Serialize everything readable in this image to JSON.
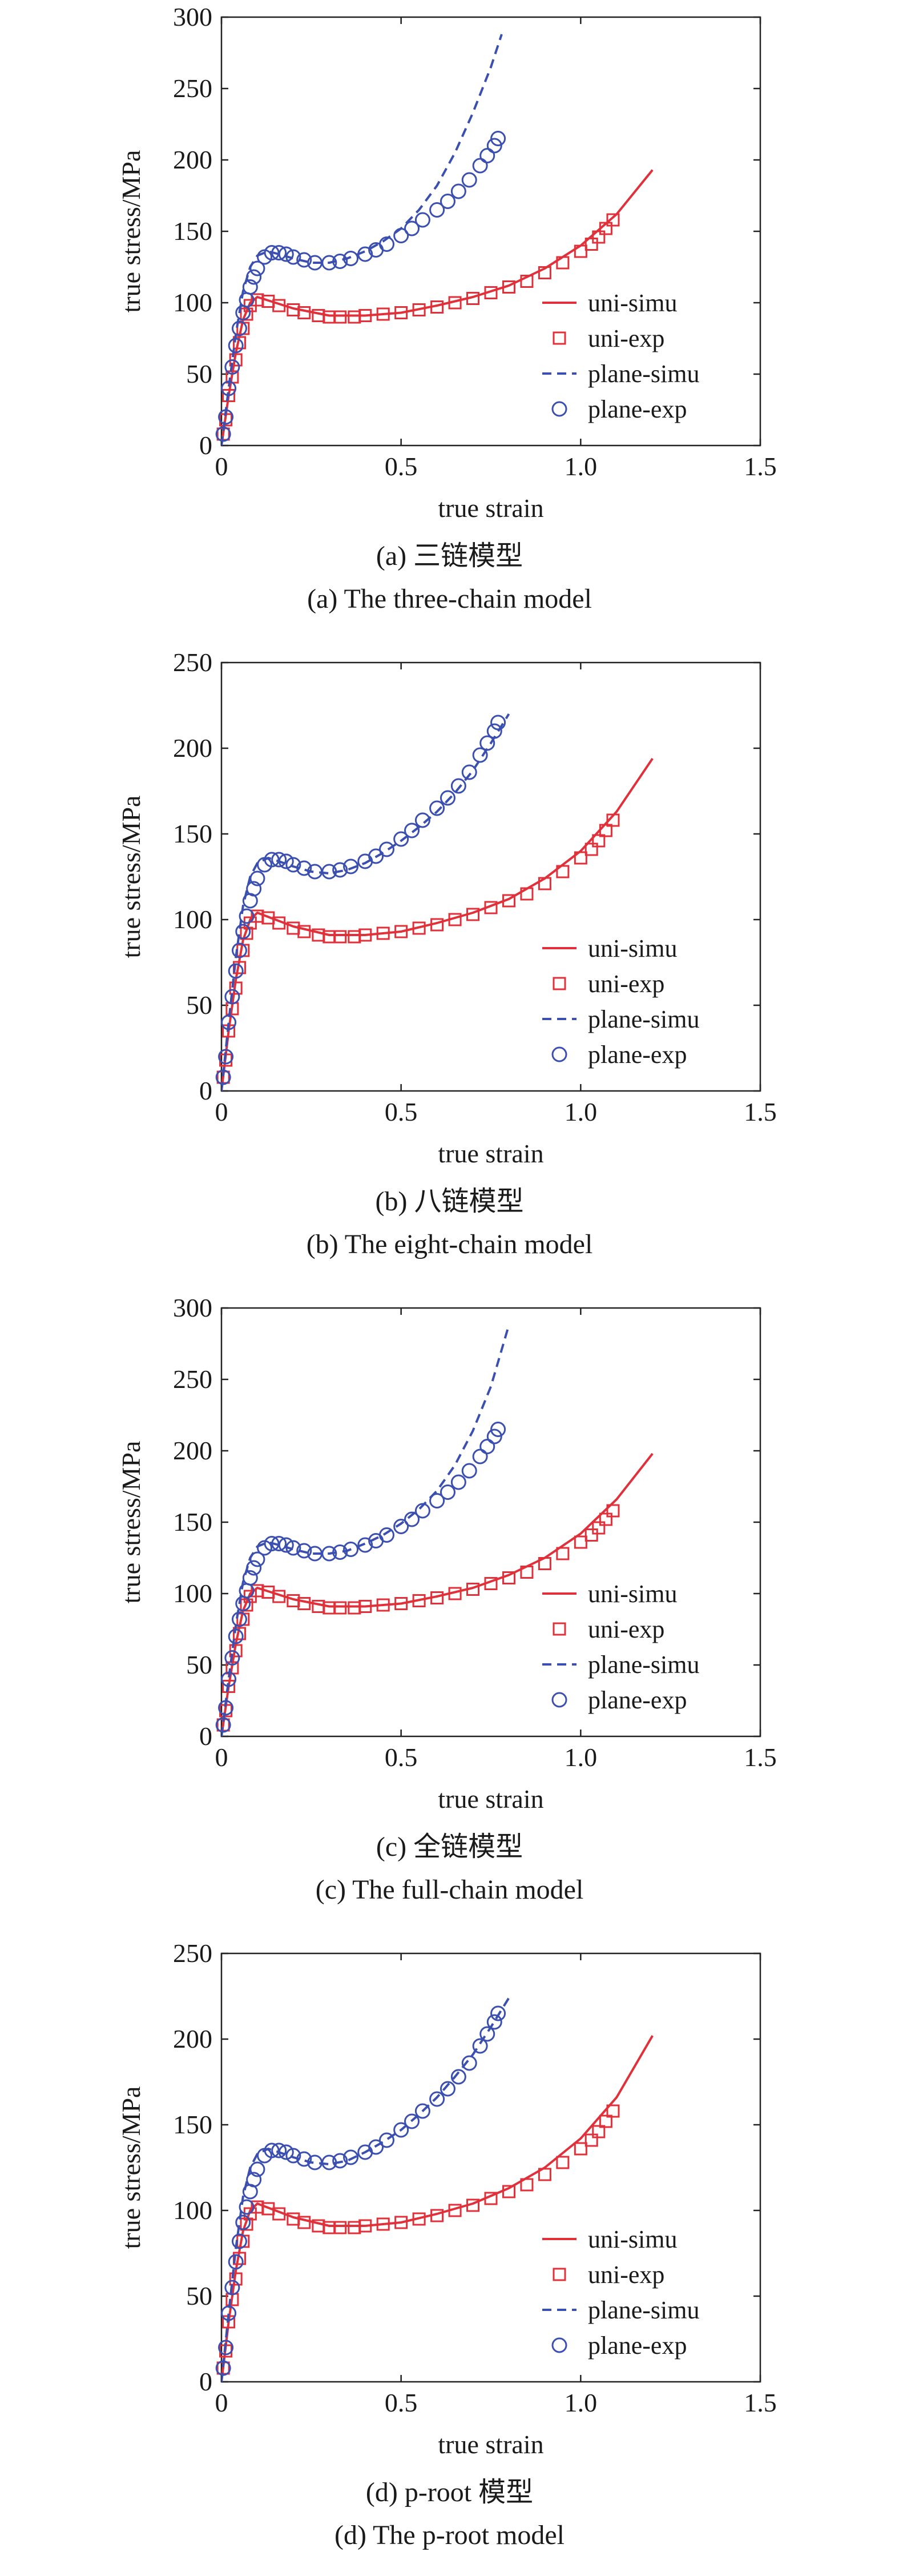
{
  "chart_data": [
    {
      "type": "line",
      "caption_cn": "(a) 三链模型",
      "caption_en": "(a) The three-chain model",
      "xlabel": "true strain",
      "ylabel": "true stress/MPa",
      "xlim": [
        0,
        1.5
      ],
      "ylim": [
        0,
        300
      ],
      "xticks": [
        "0",
        "0.5",
        "1.0",
        "1.5"
      ],
      "yticks": [
        "0",
        "50",
        "100",
        "150",
        "200",
        "250",
        "300"
      ],
      "legend_position": "lower-right",
      "series": [
        {
          "name": "uni-simu",
          "style": "solid",
          "color": "#e0303a",
          "x": [
            0,
            0.02,
            0.04,
            0.06,
            0.08,
            0.1,
            0.15,
            0.2,
            0.3,
            0.4,
            0.5,
            0.6,
            0.7,
            0.8,
            0.9,
            1.0,
            1.1,
            1.2
          ],
          "y": [
            0,
            35,
            65,
            88,
            100,
            104,
            100,
            96,
            91,
            91,
            93,
            98,
            104,
            112,
            124,
            140,
            162,
            193
          ]
        },
        {
          "name": "uni-exp",
          "marker": "square",
          "color": "#e0303a",
          "x": [
            0.005,
            0.012,
            0.02,
            0.03,
            0.04,
            0.05,
            0.06,
            0.07,
            0.08,
            0.1,
            0.13,
            0.16,
            0.2,
            0.23,
            0.27,
            0.3,
            0.33,
            0.37,
            0.4,
            0.45,
            0.5,
            0.55,
            0.6,
            0.65,
            0.7,
            0.75,
            0.8,
            0.85,
            0.9,
            0.95,
            1.0,
            1.03,
            1.05,
            1.07,
            1.09
          ],
          "y": [
            8,
            18,
            35,
            48,
            60,
            72,
            82,
            92,
            98,
            102,
            101,
            98,
            95,
            93,
            91,
            90,
            90,
            90,
            91,
            92,
            93,
            95,
            97,
            100,
            103,
            107,
            111,
            115,
            121,
            128,
            136,
            141,
            146,
            152,
            158
          ]
        },
        {
          "name": "plane-simu",
          "style": "dashed",
          "color": "#3a4fb0",
          "x": [
            0,
            0.02,
            0.04,
            0.06,
            0.08,
            0.1,
            0.13,
            0.16,
            0.2,
            0.25,
            0.3,
            0.35,
            0.4,
            0.45,
            0.5,
            0.55,
            0.6,
            0.65,
            0.7,
            0.75,
            0.78
          ],
          "y": [
            0,
            40,
            78,
            108,
            125,
            133,
            136,
            134,
            131,
            128,
            128,
            131,
            136,
            143,
            152,
            165,
            182,
            205,
            233,
            265,
            288
          ]
        },
        {
          "name": "plane-exp",
          "marker": "circle",
          "color": "#3a4fb0",
          "x": [
            0.005,
            0.012,
            0.02,
            0.03,
            0.04,
            0.05,
            0.06,
            0.07,
            0.08,
            0.09,
            0.1,
            0.12,
            0.14,
            0.16,
            0.18,
            0.2,
            0.23,
            0.26,
            0.3,
            0.33,
            0.36,
            0.4,
            0.43,
            0.46,
            0.5,
            0.53,
            0.56,
            0.6,
            0.63,
            0.66,
            0.69,
            0.72,
            0.74,
            0.76,
            0.77
          ],
          "y": [
            8,
            20,
            40,
            55,
            70,
            82,
            93,
            102,
            111,
            118,
            124,
            132,
            135,
            135,
            134,
            132,
            130,
            128,
            128,
            129,
            131,
            134,
            137,
            141,
            147,
            152,
            158,
            165,
            171,
            178,
            186,
            196,
            203,
            210,
            215
          ]
        }
      ]
    },
    {
      "type": "line",
      "caption_cn": "(b) 八链模型",
      "caption_en": "(b) The eight-chain model",
      "xlabel": "true strain",
      "ylabel": "true stress/MPa",
      "xlim": [
        0,
        1.5
      ],
      "ylim": [
        0,
        250
      ],
      "xticks": [
        "0",
        "0.5",
        "1.0",
        "1.5"
      ],
      "yticks": [
        "0",
        "50",
        "100",
        "150",
        "200",
        "250"
      ],
      "legend_position": "lower-right",
      "series": [
        {
          "name": "uni-simu",
          "style": "solid",
          "color": "#e0303a",
          "x": [
            0,
            0.02,
            0.04,
            0.06,
            0.08,
            0.1,
            0.15,
            0.2,
            0.3,
            0.4,
            0.5,
            0.6,
            0.7,
            0.8,
            0.9,
            1.0,
            1.1,
            1.2
          ],
          "y": [
            0,
            35,
            65,
            88,
            100,
            104,
            100,
            96,
            91,
            91,
            93,
            98,
            104,
            112,
            124,
            140,
            163,
            194
          ]
        },
        {
          "name": "uni-exp",
          "marker": "square",
          "color": "#e0303a",
          "x": [
            0.005,
            0.012,
            0.02,
            0.03,
            0.04,
            0.05,
            0.06,
            0.07,
            0.08,
            0.1,
            0.13,
            0.16,
            0.2,
            0.23,
            0.27,
            0.3,
            0.33,
            0.37,
            0.4,
            0.45,
            0.5,
            0.55,
            0.6,
            0.65,
            0.7,
            0.75,
            0.8,
            0.85,
            0.9,
            0.95,
            1.0,
            1.03,
            1.05,
            1.07,
            1.09
          ],
          "y": [
            8,
            18,
            35,
            48,
            60,
            72,
            82,
            92,
            98,
            102,
            101,
            98,
            95,
            93,
            91,
            90,
            90,
            90,
            91,
            92,
            93,
            95,
            97,
            100,
            103,
            107,
            111,
            115,
            121,
            128,
            136,
            141,
            146,
            152,
            158
          ]
        },
        {
          "name": "plane-simu",
          "style": "dashed",
          "color": "#3a4fb0",
          "x": [
            0,
            0.02,
            0.04,
            0.06,
            0.08,
            0.1,
            0.13,
            0.16,
            0.2,
            0.25,
            0.3,
            0.35,
            0.4,
            0.45,
            0.5,
            0.55,
            0.6,
            0.65,
            0.7,
            0.75,
            0.8
          ],
          "y": [
            0,
            40,
            78,
            108,
            125,
            133,
            136,
            134,
            131,
            128,
            127,
            129,
            133,
            139,
            146,
            154,
            163,
            174,
            187,
            203,
            220
          ]
        },
        {
          "name": "plane-exp",
          "marker": "circle",
          "color": "#3a4fb0",
          "x": [
            0.005,
            0.012,
            0.02,
            0.03,
            0.04,
            0.05,
            0.06,
            0.07,
            0.08,
            0.09,
            0.1,
            0.12,
            0.14,
            0.16,
            0.18,
            0.2,
            0.23,
            0.26,
            0.3,
            0.33,
            0.36,
            0.4,
            0.43,
            0.46,
            0.5,
            0.53,
            0.56,
            0.6,
            0.63,
            0.66,
            0.69,
            0.72,
            0.74,
            0.76,
            0.77
          ],
          "y": [
            8,
            20,
            40,
            55,
            70,
            82,
            93,
            102,
            111,
            118,
            124,
            132,
            135,
            135,
            134,
            132,
            130,
            128,
            128,
            129,
            131,
            134,
            137,
            141,
            147,
            152,
            158,
            165,
            171,
            178,
            186,
            196,
            203,
            210,
            215
          ]
        }
      ]
    },
    {
      "type": "line",
      "caption_cn": "(c) 全链模型",
      "caption_en": "(c) The full-chain model",
      "xlabel": "true strain",
      "ylabel": "true stress/MPa",
      "xlim": [
        0,
        1.5
      ],
      "ylim": [
        0,
        300
      ],
      "xticks": [
        "0",
        "0.5",
        "1.0",
        "1.5"
      ],
      "yticks": [
        "0",
        "50",
        "100",
        "150",
        "200",
        "250",
        "300"
      ],
      "legend_position": "lower-right",
      "series": [
        {
          "name": "uni-simu",
          "style": "solid",
          "color": "#e0303a",
          "x": [
            0,
            0.02,
            0.04,
            0.06,
            0.08,
            0.1,
            0.15,
            0.2,
            0.3,
            0.4,
            0.5,
            0.6,
            0.7,
            0.8,
            0.9,
            1.0,
            1.1,
            1.2
          ],
          "y": [
            0,
            35,
            65,
            88,
            100,
            104,
            100,
            96,
            91,
            91,
            93,
            98,
            104,
            113,
            125,
            142,
            166,
            198
          ]
        },
        {
          "name": "uni-exp",
          "marker": "square",
          "color": "#e0303a",
          "x": [
            0.005,
            0.012,
            0.02,
            0.03,
            0.04,
            0.05,
            0.06,
            0.07,
            0.08,
            0.1,
            0.13,
            0.16,
            0.2,
            0.23,
            0.27,
            0.3,
            0.33,
            0.37,
            0.4,
            0.45,
            0.5,
            0.55,
            0.6,
            0.65,
            0.7,
            0.75,
            0.8,
            0.85,
            0.9,
            0.95,
            1.0,
            1.03,
            1.05,
            1.07,
            1.09
          ],
          "y": [
            8,
            18,
            35,
            48,
            60,
            72,
            82,
            92,
            98,
            102,
            101,
            98,
            95,
            93,
            91,
            90,
            90,
            90,
            91,
            92,
            93,
            95,
            97,
            100,
            103,
            107,
            111,
            115,
            121,
            128,
            136,
            141,
            146,
            152,
            158
          ]
        },
        {
          "name": "plane-simu",
          "style": "dashed",
          "color": "#3a4fb0",
          "x": [
            0,
            0.02,
            0.04,
            0.06,
            0.08,
            0.1,
            0.13,
            0.16,
            0.2,
            0.25,
            0.3,
            0.35,
            0.4,
            0.45,
            0.5,
            0.55,
            0.6,
            0.65,
            0.7,
            0.75,
            0.8
          ],
          "y": [
            0,
            40,
            78,
            108,
            125,
            133,
            136,
            134,
            131,
            128,
            128,
            130,
            135,
            141,
            149,
            159,
            172,
            190,
            214,
            245,
            288
          ]
        },
        {
          "name": "plane-exp",
          "marker": "circle",
          "color": "#3a4fb0",
          "x": [
            0.005,
            0.012,
            0.02,
            0.03,
            0.04,
            0.05,
            0.06,
            0.07,
            0.08,
            0.09,
            0.1,
            0.12,
            0.14,
            0.16,
            0.18,
            0.2,
            0.23,
            0.26,
            0.3,
            0.33,
            0.36,
            0.4,
            0.43,
            0.46,
            0.5,
            0.53,
            0.56,
            0.6,
            0.63,
            0.66,
            0.69,
            0.72,
            0.74,
            0.76,
            0.77
          ],
          "y": [
            8,
            20,
            40,
            55,
            70,
            82,
            93,
            102,
            111,
            118,
            124,
            132,
            135,
            135,
            134,
            132,
            130,
            128,
            128,
            129,
            131,
            134,
            137,
            141,
            147,
            152,
            158,
            165,
            171,
            178,
            186,
            196,
            203,
            210,
            215
          ]
        }
      ]
    },
    {
      "type": "line",
      "caption_cn": "(d) p-root 模型",
      "caption_en": "(d) The p-root model",
      "xlabel": "true strain",
      "ylabel": "true stress/MPa",
      "xlim": [
        0,
        1.5
      ],
      "ylim": [
        0,
        250
      ],
      "xticks": [
        "0",
        "0.5",
        "1.0",
        "1.5"
      ],
      "yticks": [
        "0",
        "50",
        "100",
        "150",
        "200",
        "250"
      ],
      "legend_position": "lower-right",
      "series": [
        {
          "name": "uni-simu",
          "style": "solid",
          "color": "#e0303a",
          "x": [
            0,
            0.02,
            0.04,
            0.06,
            0.08,
            0.1,
            0.15,
            0.2,
            0.3,
            0.4,
            0.5,
            0.6,
            0.7,
            0.8,
            0.9,
            1.0,
            1.1,
            1.2
          ],
          "y": [
            0,
            35,
            65,
            88,
            100,
            104,
            100,
            96,
            91,
            91,
            93,
            98,
            104,
            113,
            125,
            142,
            166,
            202
          ]
        },
        {
          "name": "uni-exp",
          "marker": "square",
          "color": "#e0303a",
          "x": [
            0.005,
            0.012,
            0.02,
            0.03,
            0.04,
            0.05,
            0.06,
            0.07,
            0.08,
            0.1,
            0.13,
            0.16,
            0.2,
            0.23,
            0.27,
            0.3,
            0.33,
            0.37,
            0.4,
            0.45,
            0.5,
            0.55,
            0.6,
            0.65,
            0.7,
            0.75,
            0.8,
            0.85,
            0.9,
            0.95,
            1.0,
            1.03,
            1.05,
            1.07,
            1.09
          ],
          "y": [
            8,
            18,
            35,
            48,
            60,
            72,
            82,
            92,
            98,
            102,
            101,
            98,
            95,
            93,
            91,
            90,
            90,
            90,
            91,
            92,
            93,
            95,
            97,
            100,
            103,
            107,
            111,
            115,
            121,
            128,
            136,
            141,
            146,
            152,
            158
          ]
        },
        {
          "name": "plane-simu",
          "style": "dashed",
          "color": "#3a4fb0",
          "x": [
            0,
            0.02,
            0.04,
            0.06,
            0.08,
            0.1,
            0.13,
            0.16,
            0.2,
            0.25,
            0.3,
            0.35,
            0.4,
            0.45,
            0.5,
            0.55,
            0.6,
            0.65,
            0.7,
            0.75,
            0.8
          ],
          "y": [
            0,
            40,
            78,
            108,
            125,
            133,
            136,
            134,
            131,
            128,
            127,
            129,
            134,
            140,
            147,
            156,
            166,
            178,
            191,
            207,
            224
          ]
        },
        {
          "name": "plane-exp",
          "marker": "circle",
          "color": "#3a4fb0",
          "x": [
            0.005,
            0.012,
            0.02,
            0.03,
            0.04,
            0.05,
            0.06,
            0.07,
            0.08,
            0.09,
            0.1,
            0.12,
            0.14,
            0.16,
            0.18,
            0.2,
            0.23,
            0.26,
            0.3,
            0.33,
            0.36,
            0.4,
            0.43,
            0.46,
            0.5,
            0.53,
            0.56,
            0.6,
            0.63,
            0.66,
            0.69,
            0.72,
            0.74,
            0.76,
            0.77
          ],
          "y": [
            8,
            20,
            40,
            55,
            70,
            82,
            93,
            102,
            111,
            118,
            124,
            132,
            135,
            135,
            134,
            132,
            130,
            128,
            128,
            129,
            131,
            134,
            137,
            141,
            147,
            152,
            158,
            165,
            171,
            178,
            186,
            196,
            203,
            210,
            215
          ]
        }
      ]
    }
  ]
}
